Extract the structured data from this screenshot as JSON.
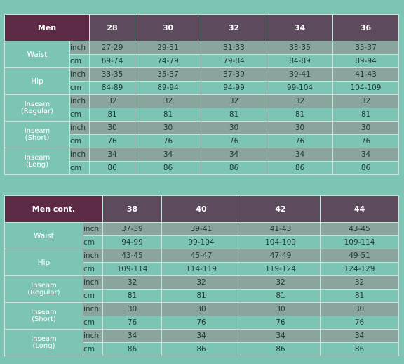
{
  "table1": {
    "corner": "Men",
    "columns": [
      "28",
      "30",
      "32",
      "34",
      "36"
    ],
    "rows": [
      {
        "label": [
          "Waist"
        ],
        "inch": [
          "27-29",
          "29-31",
          "31-33",
          "33-35",
          "35-37"
        ],
        "cm": [
          "69-74",
          "74-79",
          "79-84",
          "84-89",
          "89-94"
        ]
      },
      {
        "label": [
          "Hip"
        ],
        "inch": [
          "33-35",
          "35-37",
          "37-39",
          "39-41",
          "41-43"
        ],
        "cm": [
          "84-89",
          "89-94",
          "94-99",
          "99-104",
          "104-109"
        ]
      },
      {
        "label": [
          "Inseam",
          "(Regular)"
        ],
        "inch": [
          "32",
          "32",
          "32",
          "32",
          "32"
        ],
        "cm": [
          "81",
          "81",
          "81",
          "81",
          "81"
        ]
      },
      {
        "label": [
          "Inseam",
          "(Short)"
        ],
        "inch": [
          "30",
          "30",
          "30",
          "30",
          "30"
        ],
        "cm": [
          "76",
          "76",
          "76",
          "76",
          "76"
        ]
      },
      {
        "label": [
          "Inseam",
          "(Long)"
        ],
        "inch": [
          "34",
          "34",
          "34",
          "34",
          "34"
        ],
        "cm": [
          "86",
          "86",
          "86",
          "86",
          "86"
        ]
      }
    ]
  },
  "table2": {
    "corner": "Men cont.",
    "columns": [
      "38",
      "40",
      "42",
      "44"
    ],
    "rows": [
      {
        "label": [
          "Waist"
        ],
        "inch": [
          "37-39",
          "39-41",
          "41-43",
          "43-45"
        ],
        "cm": [
          "94-99",
          "99-104",
          "104-109",
          "109-114"
        ]
      },
      {
        "label": [
          "Hip"
        ],
        "inch": [
          "43-45",
          "45-47",
          "47-49",
          "49-51"
        ],
        "cm": [
          "109-114",
          "114-119",
          "119-124",
          "124-129"
        ]
      },
      {
        "label": [
          "Inseam",
          "(Regular)"
        ],
        "inch": [
          "32",
          "32",
          "32",
          "32"
        ],
        "cm": [
          "81",
          "81",
          "81",
          "81"
        ]
      },
      {
        "label": [
          "Inseam",
          "(Short)"
        ],
        "inch": [
          "30",
          "30",
          "30",
          "30"
        ],
        "cm": [
          "76",
          "76",
          "76",
          "76"
        ]
      },
      {
        "label": [
          "Inseam",
          "(Long)"
        ],
        "inch": [
          "34",
          "34",
          "34",
          "34"
        ],
        "cm": [
          "86",
          "86",
          "86",
          "86"
        ]
      }
    ]
  },
  "units": {
    "inch": "inch",
    "cm": "cm"
  },
  "colors": {
    "background": "#7cc4b4",
    "corner_header": "#5c2a44",
    "column_header": "#5d4a5c",
    "inch_row": "#8aa59d",
    "grid_line": "#c8e3db"
  }
}
